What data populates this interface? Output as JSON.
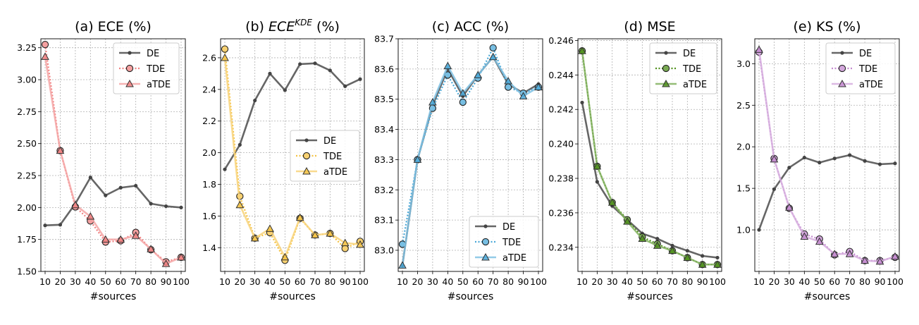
{
  "chart_data": [
    {
      "type": "line",
      "title": "(a) ECE (%)",
      "xlabel": "#sources",
      "ylabel": "",
      "x": [
        10,
        20,
        30,
        40,
        50,
        60,
        70,
        80,
        90,
        100
      ],
      "xlim": [
        10,
        100
      ],
      "ylim": [
        1.5,
        3.32
      ],
      "yticks": [
        1.5,
        1.75,
        2.0,
        2.25,
        2.5,
        2.75,
        3.0,
        3.25
      ],
      "ytick_labels": [
        "1.50",
        "1.75",
        "2.00",
        "2.25",
        "2.50",
        "2.75",
        "3.00",
        "3.25"
      ],
      "legend": "top-right",
      "grid": true,
      "accent": "#f08080",
      "series": [
        {
          "name": "DE",
          "style": "solid-dot",
          "values": [
            1.86,
            1.865,
            2.03,
            2.235,
            2.095,
            2.155,
            2.17,
            2.03,
            2.01,
            2.0
          ]
        },
        {
          "name": "TDE",
          "style": "dotted-circle",
          "values": [
            3.275,
            2.445,
            2.005,
            1.895,
            1.73,
            1.74,
            1.805,
            1.67,
            1.575,
            1.61
          ]
        },
        {
          "name": "aTDE",
          "style": "solid-triangle",
          "values": [
            3.18,
            2.445,
            2.02,
            1.93,
            1.75,
            1.75,
            1.78,
            1.675,
            1.56,
            1.61
          ]
        }
      ]
    },
    {
      "type": "line",
      "title": "(b) ECE",
      "title_sup": "KDE",
      "title_suffix": " (%)",
      "xlabel": "#sources",
      "ylabel": "",
      "x": [
        10,
        20,
        30,
        40,
        50,
        60,
        70,
        80,
        90,
        100
      ],
      "xlim": [
        10,
        100
      ],
      "ylim": [
        1.25,
        2.72
      ],
      "yticks": [
        1.4,
        1.6,
        1.8,
        2.0,
        2.2,
        2.4,
        2.6
      ],
      "ytick_labels": [
        "1.4",
        "1.6",
        "1.8",
        "2.0",
        "2.2",
        "2.4",
        "2.6"
      ],
      "legend": "center-right",
      "grid": true,
      "accent": "#f5c242",
      "series": [
        {
          "name": "DE",
          "style": "solid-dot",
          "values": [
            1.895,
            2.05,
            2.33,
            2.5,
            2.395,
            2.56,
            2.565,
            2.52,
            2.42,
            2.465
          ]
        },
        {
          "name": "TDE",
          "style": "dotted-circle",
          "values": [
            2.655,
            1.725,
            1.46,
            1.495,
            1.32,
            1.585,
            1.48,
            1.49,
            1.395,
            1.44
          ]
        },
        {
          "name": "aTDE",
          "style": "solid-triangle",
          "values": [
            2.6,
            1.67,
            1.46,
            1.52,
            1.34,
            1.59,
            1.48,
            1.49,
            1.43,
            1.42
          ]
        }
      ]
    },
    {
      "type": "line",
      "title": "(c) ACC (%)",
      "xlabel": "#sources",
      "ylabel": "",
      "x": [
        10,
        20,
        30,
        40,
        50,
        60,
        70,
        80,
        90,
        100
      ],
      "xlim": [
        10,
        100
      ],
      "ylim": [
        82.93,
        83.7
      ],
      "yticks": [
        83.0,
        83.1,
        83.2,
        83.3,
        83.4,
        83.5,
        83.6,
        83.7
      ],
      "ytick_labels": [
        "83.0",
        "83.1",
        "83.2",
        "83.3",
        "83.4",
        "83.5",
        "83.6",
        "83.7"
      ],
      "legend": "bottom-right",
      "grid": true,
      "accent": "#4aa8d8",
      "series": [
        {
          "name": "DE",
          "style": "solid-dot",
          "values": [
            82.95,
            83.3,
            83.48,
            83.6,
            83.51,
            83.58,
            83.64,
            83.55,
            83.52,
            83.55
          ]
        },
        {
          "name": "TDE",
          "style": "dotted-circle",
          "values": [
            83.02,
            83.3,
            83.47,
            83.58,
            83.49,
            83.57,
            83.67,
            83.54,
            83.52,
            83.54
          ]
        },
        {
          "name": "aTDE",
          "style": "solid-triangle",
          "values": [
            82.95,
            83.3,
            83.49,
            83.61,
            83.52,
            83.58,
            83.64,
            83.56,
            83.51,
            83.54
          ]
        }
      ]
    },
    {
      "type": "line",
      "title": "(d) MSE",
      "xlabel": "#sources",
      "ylabel": "",
      "x": [
        10,
        20,
        30,
        40,
        50,
        60,
        70,
        80,
        90,
        100
      ],
      "xlim": [
        10,
        100
      ],
      "ylim": [
        0.2326,
        0.2461
      ],
      "yticks": [
        0.234,
        0.236,
        0.238,
        0.24,
        0.242,
        0.244,
        0.246
      ],
      "ytick_labels": [
        "0.234",
        "0.236",
        "0.238",
        "0.240",
        "0.242",
        "0.244",
        "0.246"
      ],
      "legend": "top-right",
      "grid": true,
      "accent": "#4e8f1a",
      "series": [
        {
          "name": "DE",
          "style": "solid-dot",
          "values": [
            0.2424,
            0.2378,
            0.2364,
            0.2356,
            0.2348,
            0.2345,
            0.2341,
            0.2338,
            0.2335,
            0.2334
          ]
        },
        {
          "name": "TDE",
          "style": "dotted-circle",
          "values": [
            0.2454,
            0.2387,
            0.2366,
            0.2356,
            0.2346,
            0.2342,
            0.2338,
            0.2334,
            0.233,
            0.233
          ]
        },
        {
          "name": "aTDE",
          "style": "solid-triangle",
          "values": [
            0.2454,
            0.2387,
            0.2366,
            0.2355,
            0.2345,
            0.2341,
            0.2338,
            0.2334,
            0.233,
            0.233
          ]
        }
      ]
    },
    {
      "type": "line",
      "title": "(e) KS (%)",
      "xlabel": "#sources",
      "ylabel": "",
      "x": [
        10,
        20,
        30,
        40,
        50,
        60,
        70,
        80,
        90,
        100
      ],
      "xlim": [
        10,
        100
      ],
      "ylim": [
        0.5,
        3.3
      ],
      "yticks": [
        1.0,
        1.5,
        2.0,
        2.5,
        3.0
      ],
      "ytick_labels": [
        "1.0",
        "1.5",
        "2.0",
        "2.5",
        "3.0"
      ],
      "legend": "top-right",
      "grid": true,
      "accent": "#c48ad0",
      "series": [
        {
          "name": "DE",
          "style": "solid-dot",
          "values": [
            1.0,
            1.49,
            1.75,
            1.87,
            1.81,
            1.86,
            1.9,
            1.83,
            1.79,
            1.8
          ]
        },
        {
          "name": "TDE",
          "style": "dotted-circle",
          "values": [
            3.14,
            1.86,
            1.26,
            0.95,
            0.89,
            0.7,
            0.74,
            0.63,
            0.63,
            0.67
          ]
        },
        {
          "name": "aTDE",
          "style": "solid-triangle",
          "values": [
            3.17,
            1.85,
            1.27,
            0.92,
            0.86,
            0.71,
            0.71,
            0.63,
            0.62,
            0.68
          ]
        }
      ]
    }
  ]
}
